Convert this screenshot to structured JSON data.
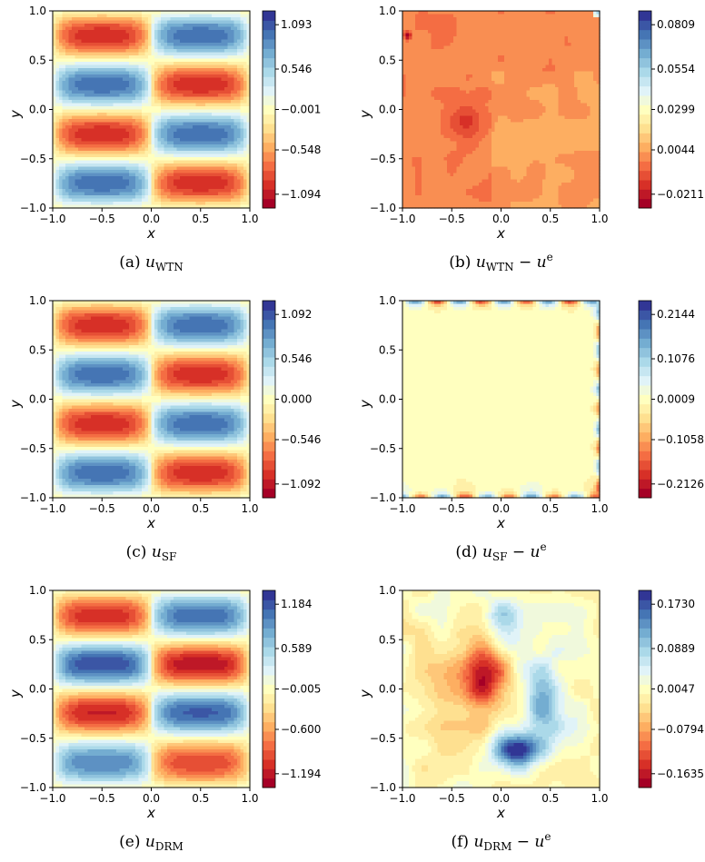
{
  "chart_data": [
    {
      "type": "heatmap",
      "id": "a",
      "caption": {
        "tag": "(a)",
        "var": "u",
        "sub": "WTN",
        "suffix": ""
      },
      "xlabel": "x",
      "ylabel": "y",
      "xlim": [
        -1.0,
        1.0
      ],
      "ylim": [
        -1.0,
        1.0
      ],
      "xticks": [
        "−1.0",
        "−0.5",
        "0.0",
        "0.5",
        "1.0"
      ],
      "yticks": [
        "−1.0",
        "−0.5",
        "0.0",
        "0.5",
        "1.0"
      ],
      "colorbar": {
        "ticks": [
          "1.093",
          "0.546",
          "−0.001",
          "−0.548",
          "−1.094"
        ],
        "range": [
          -1.094,
          1.093
        ]
      },
      "colormap": "RdYlBu",
      "field": "stripes"
    },
    {
      "type": "heatmap",
      "id": "b",
      "caption": {
        "tag": "(b)",
        "var": "u",
        "sub": "WTN",
        "suffix": " − u"
      },
      "xlabel": "x",
      "ylabel": "y",
      "xlim": [
        -1.0,
        1.0
      ],
      "ylim": [
        -1.0,
        1.0
      ],
      "xticks": [
        "−1.0",
        "−0.5",
        "0.0",
        "0.5",
        "1.0"
      ],
      "yticks": [
        "−1.0",
        "−0.5",
        "0.0",
        "0.5",
        "1.0"
      ],
      "colorbar": {
        "ticks": [
          "0.0809",
          "0.0554",
          "0.0299",
          "0.0044",
          "−0.0211"
        ],
        "range": [
          -0.0211,
          0.0809
        ]
      },
      "colormap": "RdYlBu",
      "field": "error_flat"
    },
    {
      "type": "heatmap",
      "id": "c",
      "caption": {
        "tag": "(c)",
        "var": "u",
        "sub": "SF",
        "suffix": ""
      },
      "xlabel": "x",
      "ylabel": "y",
      "xlim": [
        -1.0,
        1.0
      ],
      "ylim": [
        -1.0,
        1.0
      ],
      "xticks": [
        "−1.0",
        "−0.5",
        "0.0",
        "0.5",
        "1.0"
      ],
      "yticks": [
        "−1.0",
        "−0.5",
        "0.0",
        "0.5",
        "1.0"
      ],
      "colorbar": {
        "ticks": [
          "1.092",
          "0.546",
          "0.000",
          "−0.546",
          "−1.092"
        ],
        "range": [
          -1.092,
          1.092
        ]
      },
      "colormap": "RdYlBu",
      "field": "stripes"
    },
    {
      "type": "heatmap",
      "id": "d",
      "caption": {
        "tag": "(d)",
        "var": "u",
        "sub": "SF",
        "suffix": " − u"
      },
      "xlabel": "x",
      "ylabel": "y",
      "xlim": [
        -1.0,
        1.0
      ],
      "ylim": [
        -1.0,
        1.0
      ],
      "xticks": [
        "−1.0",
        "−0.5",
        "0.0",
        "0.5",
        "1.0"
      ],
      "yticks": [
        "−1.0",
        "−0.5",
        "0.0",
        "0.5",
        "1.0"
      ],
      "colorbar": {
        "ticks": [
          "0.2144",
          "0.1076",
          "0.0009",
          "−0.1058",
          "−0.2126"
        ],
        "range": [
          -0.2126,
          0.2144
        ]
      },
      "colormap": "RdYlBu",
      "field": "error_boundary"
    },
    {
      "type": "heatmap",
      "id": "e",
      "caption": {
        "tag": "(e)",
        "var": "u",
        "sub": "DRM",
        "suffix": ""
      },
      "xlabel": "x",
      "ylabel": "y",
      "xlim": [
        -1.0,
        1.0
      ],
      "ylim": [
        -1.0,
        1.0
      ],
      "xticks": [
        "−1.0",
        "−0.5",
        "0.0",
        "0.5",
        "1.0"
      ],
      "yticks": [
        "−1.0",
        "−0.5",
        "0.0",
        "0.5",
        "1.0"
      ],
      "colorbar": {
        "ticks": [
          "1.184",
          "0.589",
          "−0.005",
          "−0.600",
          "−1.194"
        ],
        "range": [
          -1.194,
          1.184
        ]
      },
      "colormap": "RdYlBu",
      "field": "stripes_drm"
    },
    {
      "type": "heatmap",
      "id": "f",
      "caption": {
        "tag": "(f)",
        "var": "u",
        "sub": "DRM",
        "suffix": " − u"
      },
      "xlabel": "x",
      "ylabel": "y",
      "xlim": [
        -1.0,
        1.0
      ],
      "ylim": [
        -1.0,
        1.0
      ],
      "xticks": [
        "−1.0",
        "−0.5",
        "0.0",
        "0.5",
        "1.0"
      ],
      "yticks": [
        "−1.0",
        "−0.5",
        "0.0",
        "0.5",
        "1.0"
      ],
      "colorbar": {
        "ticks": [
          "0.1730",
          "0.0889",
          "0.0047",
          "−0.0794",
          "−0.1635"
        ],
        "range": [
          -0.1635,
          0.173
        ]
      },
      "colormap": "RdYlBu",
      "field": "error_blobs"
    }
  ],
  "caption_superscript": "e"
}
